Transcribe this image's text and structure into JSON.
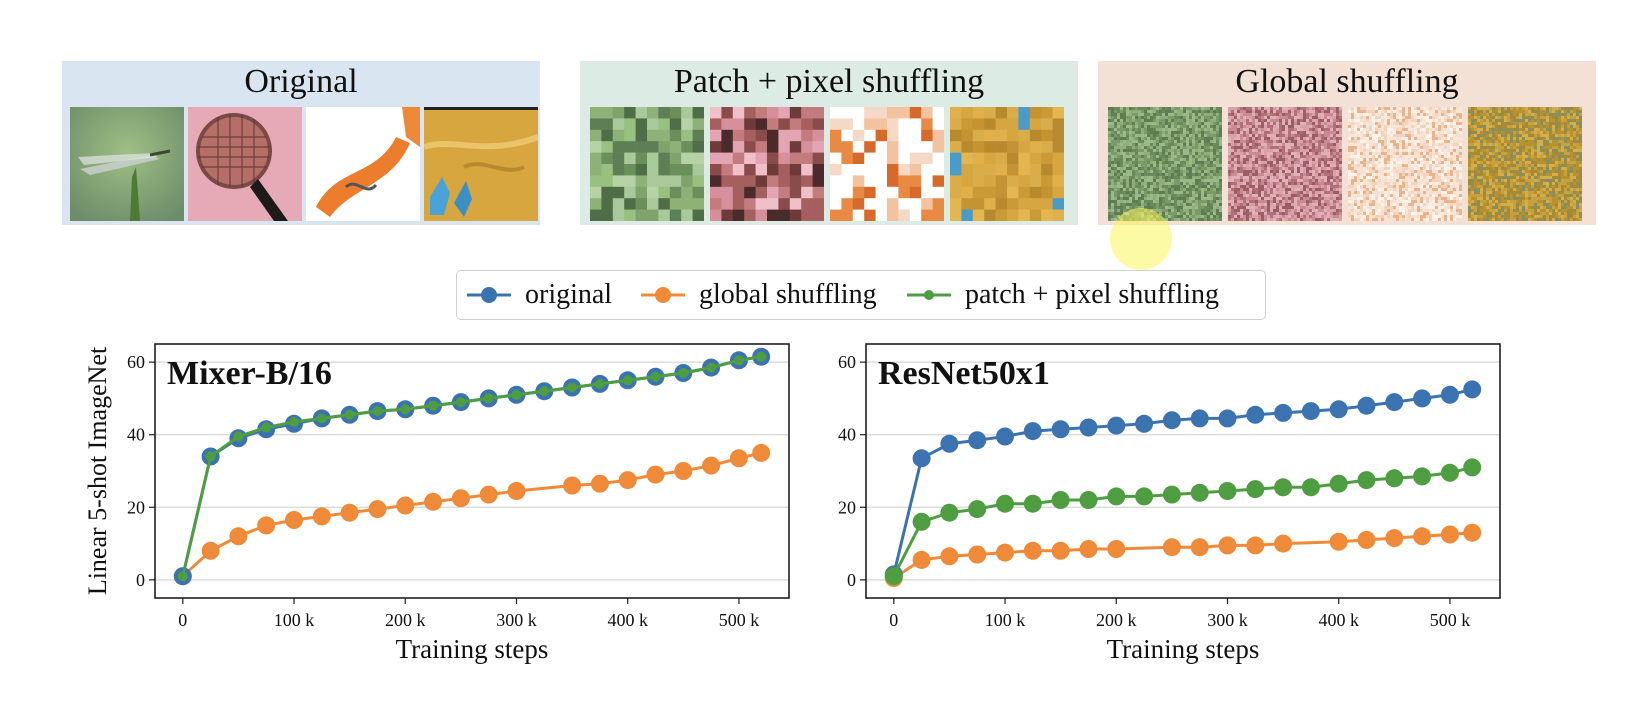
{
  "panels": [
    {
      "title": "Original",
      "bg": "#d9e5f1"
    },
    {
      "title": "Patch + pixel shuffling",
      "bg": "#dcebe4"
    },
    {
      "title": "Global shuffling",
      "bg": "#f3e1d6"
    }
  ],
  "thumbnails": {
    "original": [
      "dragonfly-photo",
      "microphone-photo",
      "corkscrew-photo",
      "gloves-sand-photo"
    ],
    "patch_pixel": [
      "shuffled-green",
      "shuffled-pink",
      "shuffled-orange-white",
      "shuffled-gold"
    ],
    "global": [
      "noise-green",
      "noise-pink",
      "noise-cream",
      "noise-gold"
    ]
  },
  "legend": [
    {
      "label": "original",
      "color": "#3b73b0",
      "marker": "large"
    },
    {
      "label": "global shuffling",
      "color": "#ef8a39",
      "marker": "large"
    },
    {
      "label": "patch + pixel shuffling",
      "color": "#4e9e41",
      "marker": "small"
    }
  ],
  "colors": {
    "original": "#3b73b0",
    "global": "#ef8a39",
    "patch": "#4e9e41"
  },
  "chart_data": [
    {
      "type": "line",
      "title": "Mixer-B/16",
      "xlabel": "Training steps",
      "ylabel": "Linear 5-shot ImageNet",
      "xlim": [
        -25000,
        545000
      ],
      "ylim": [
        -5,
        65
      ],
      "xticks": [
        0,
        100000,
        200000,
        300000,
        400000,
        500000
      ],
      "xtick_labels": [
        "0",
        "100 k",
        "200 k",
        "300 k",
        "400 k",
        "500 k"
      ],
      "yticks": [
        0,
        20,
        40,
        60
      ],
      "ytick_labels": [
        "0",
        "20",
        "40",
        "60"
      ],
      "grid": "horizontal",
      "series": [
        {
          "name": "original",
          "x": [
            0,
            25000,
            50000,
            75000,
            100000,
            125000,
            150000,
            175000,
            200000,
            225000,
            250000,
            275000,
            300000,
            325000,
            350000,
            375000,
            400000,
            425000,
            450000,
            475000,
            500000,
            520000
          ],
          "y": [
            1,
            34,
            39,
            41.5,
            43,
            44.5,
            45.5,
            46.5,
            47,
            48,
            49,
            50,
            51,
            52,
            53,
            54,
            55,
            56,
            57,
            58.5,
            60.5,
            61.5
          ]
        },
        {
          "name": "global shuffling",
          "x": [
            0,
            25000,
            50000,
            75000,
            100000,
            125000,
            150000,
            175000,
            200000,
            225000,
            250000,
            275000,
            300000,
            350000,
            375000,
            400000,
            425000,
            450000,
            475000,
            500000,
            520000
          ],
          "y": [
            1,
            8,
            12,
            15,
            16.5,
            17.5,
            18.5,
            19.5,
            20.5,
            21.5,
            22.5,
            23.5,
            24.5,
            26,
            26.5,
            27.5,
            29,
            30,
            31.5,
            33.5,
            35
          ]
        },
        {
          "name": "patch + pixel shuffling",
          "x": [
            0,
            25000,
            50000,
            75000,
            100000,
            125000,
            150000,
            175000,
            200000,
            225000,
            250000,
            275000,
            300000,
            325000,
            350000,
            375000,
            400000,
            425000,
            450000,
            475000,
            500000,
            520000
          ],
          "y": [
            1,
            34,
            39.5,
            42,
            43.5,
            44.5,
            45.5,
            46.5,
            47,
            48,
            49,
            50,
            51,
            52,
            53,
            54,
            55,
            56,
            57,
            58.5,
            60.5,
            61.5
          ]
        }
      ]
    },
    {
      "type": "line",
      "title": "ResNet50x1",
      "xlabel": "Training steps",
      "ylabel": "",
      "xlim": [
        -25000,
        545000
      ],
      "ylim": [
        -5,
        65
      ],
      "xticks": [
        0,
        100000,
        200000,
        300000,
        400000,
        500000
      ],
      "xtick_labels": [
        "0",
        "100 k",
        "200 k",
        "300 k",
        "400 k",
        "500 k"
      ],
      "yticks": [
        0,
        20,
        40,
        60
      ],
      "ytick_labels": [
        "0",
        "20",
        "40",
        "60"
      ],
      "grid": "horizontal",
      "series": [
        {
          "name": "original",
          "x": [
            0,
            25000,
            50000,
            75000,
            100000,
            125000,
            150000,
            175000,
            200000,
            225000,
            250000,
            275000,
            300000,
            325000,
            350000,
            375000,
            400000,
            425000,
            450000,
            475000,
            500000,
            520000
          ],
          "y": [
            1.5,
            33.5,
            37.5,
            38.5,
            39.5,
            41,
            41.5,
            42,
            42.5,
            43,
            44,
            44.5,
            44.5,
            45.5,
            46,
            46.5,
            47,
            48,
            49,
            50,
            51,
            52.5
          ]
        },
        {
          "name": "global shuffling",
          "x": [
            0,
            25000,
            50000,
            75000,
            100000,
            125000,
            150000,
            175000,
            200000,
            250000,
            275000,
            300000,
            325000,
            350000,
            400000,
            425000,
            450000,
            475000,
            500000,
            520000
          ],
          "y": [
            0.5,
            5.5,
            6.5,
            7,
            7.5,
            8,
            8,
            8.5,
            8.5,
            9,
            9,
            9.5,
            9.5,
            10,
            10.5,
            11,
            11.5,
            12,
            12.5,
            13
          ]
        },
        {
          "name": "patch + pixel shuffling",
          "x": [
            0,
            25000,
            50000,
            75000,
            100000,
            125000,
            150000,
            175000,
            200000,
            225000,
            250000,
            275000,
            300000,
            325000,
            350000,
            375000,
            400000,
            425000,
            450000,
            475000,
            500000,
            520000
          ],
          "y": [
            1,
            16,
            18.5,
            19.5,
            21,
            21,
            22,
            22,
            23,
            23,
            23.5,
            24,
            24.5,
            25,
            25.5,
            25.5,
            26.5,
            27.5,
            28,
            28.5,
            29.5,
            31
          ]
        }
      ]
    }
  ]
}
